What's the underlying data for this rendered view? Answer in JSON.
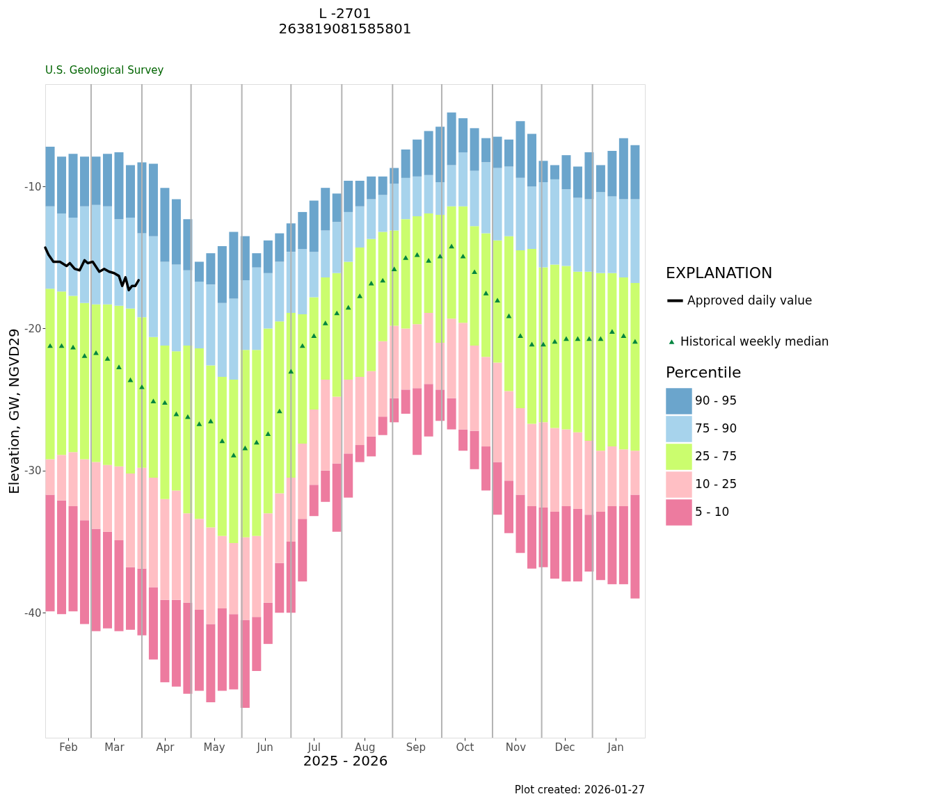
{
  "chart_data": {
    "type": "bar",
    "title": "L -2701",
    "subtitle": "263819081585801",
    "xlabel": "2025 - 2026",
    "ylabel": "Elevation, GW, NGVD29",
    "legend_title": [
      "EXPLANATION",
      "Percentile"
    ],
    "annotations": [
      "U.S. Geological Survey",
      "Plot created: 2026-01-27"
    ],
    "x": [
      "2025-02-04",
      "2025-02-11",
      "2025-02-18",
      "2025-02-25",
      "2025-03-04",
      "2025-03-11",
      "2025-03-18",
      "2025-03-25",
      "2025-04-01",
      "2025-04-08",
      "2025-04-15",
      "2025-04-22",
      "2025-04-29",
      "2025-05-06",
      "2025-05-13",
      "2025-05-20",
      "2025-05-27",
      "2025-06-03",
      "2025-06-10",
      "2025-06-17",
      "2025-06-24",
      "2025-07-01",
      "2025-07-08",
      "2025-07-15",
      "2025-07-22",
      "2025-07-29",
      "2025-08-05",
      "2025-08-12",
      "2025-08-19",
      "2025-08-26",
      "2025-09-02",
      "2025-09-09",
      "2025-09-16",
      "2025-09-23",
      "2025-09-30",
      "2025-10-07",
      "2025-10-14",
      "2025-10-21",
      "2025-10-28",
      "2025-11-04",
      "2025-11-11",
      "2025-11-18",
      "2025-11-25",
      "2025-12-02",
      "2025-12-09",
      "2025-12-16",
      "2025-12-23",
      "2025-12-30",
      "2026-01-06",
      "2026-01-13",
      "2026-01-20",
      "2026-01-27"
    ],
    "series": [
      {
        "name": "5 - 10",
        "color": "#ed7b9f",
        "base": [
          -39.9,
          -40.1,
          -39.9,
          -40.8,
          -41.3,
          -41.1,
          -41.3,
          -41.2,
          -41.6,
          -43.3,
          -44.9,
          -45.2,
          -45.7,
          -45.5,
          -46.3,
          -45.5,
          -45.4,
          -46.7,
          -44.1,
          -42.2,
          -40.0,
          -40.0,
          -37.8,
          -33.2,
          -32.2,
          -34.3,
          -31.9,
          -29.4,
          -29.0,
          -27.5,
          -26.6,
          -26.0,
          -28.9,
          -27.6,
          -26.5,
          -27.1,
          -28.6,
          -29.9,
          -31.4,
          -33.1,
          -34.4,
          -35.8,
          -36.9,
          -36.8,
          -37.6,
          -37.8,
          -37.8,
          -37.1,
          -37.7,
          -38.0,
          -38.0,
          -39.0
        ],
        "values": [
          8.2,
          8.0,
          7.4,
          7.3,
          7.2,
          6.8,
          6.4,
          4.4,
          4.7,
          5.1,
          5.8,
          6.1,
          6.4,
          5.7,
          5.5,
          5.8,
          5.3,
          6.2,
          3.8,
          2.9,
          3.5,
          5.0,
          4.4,
          2.2,
          2.2,
          4.8,
          3.1,
          1.2,
          1.4,
          1.3,
          1.7,
          1.7,
          4.7,
          3.7,
          2.2,
          2.2,
          1.5,
          2.7,
          3.1,
          3.7,
          3.7,
          4.1,
          4.4,
          4.2,
          4.7,
          5.3,
          5.1,
          4.0,
          4.8,
          5.5,
          5.5,
          7.3
        ]
      },
      {
        "name": "10 - 25",
        "color": "#ffbfc4",
        "base": [
          -31.7,
          -32.1,
          -32.5,
          -33.5,
          -34.1,
          -34.3,
          -34.9,
          -36.8,
          -36.9,
          -38.2,
          -39.1,
          -39.1,
          -39.3,
          -39.8,
          -40.8,
          -39.7,
          -40.1,
          -40.5,
          -40.3,
          -39.3,
          -36.5,
          -35.0,
          -33.4,
          -31.0,
          -30.0,
          -29.5,
          -28.8,
          -28.2,
          -27.6,
          -26.2,
          -24.9,
          -24.3,
          -24.2,
          -23.9,
          -24.3,
          -24.9,
          -27.1,
          -27.2,
          -28.3,
          -29.4,
          -30.7,
          -31.7,
          -32.5,
          -32.6,
          -32.9,
          -32.5,
          -32.7,
          -33.1,
          -32.9,
          -32.5,
          -32.5,
          -31.7
        ],
        "values": [
          2.5,
          3.2,
          3.8,
          4.3,
          4.7,
          4.7,
          5.2,
          6.6,
          7.1,
          7.7,
          7.1,
          7.7,
          6.3,
          6.4,
          6.8,
          5.1,
          5.0,
          5.8,
          5.7,
          6.3,
          4.9,
          4.5,
          5.3,
          5.3,
          6.4,
          4.7,
          5.2,
          4.8,
          4.6,
          5.3,
          5.1,
          4.3,
          4.5,
          5.0,
          3.3,
          5.6,
          7.5,
          6.0,
          6.3,
          7.0,
          6.3,
          6.1,
          5.8,
          6.0,
          5.9,
          5.4,
          5.4,
          5.2,
          4.3,
          4.2,
          4.0,
          3.1
        ]
      },
      {
        "name": "25 - 75",
        "color": "#cbfd6e",
        "base": [
          -29.2,
          -28.9,
          -28.7,
          -29.2,
          -29.4,
          -29.6,
          -29.7,
          -30.2,
          -29.8,
          -30.5,
          -32.0,
          -31.4,
          -33.0,
          -33.4,
          -34.0,
          -34.6,
          -35.1,
          -34.7,
          -34.6,
          -33.0,
          -31.6,
          -30.5,
          -28.1,
          -25.7,
          -23.6,
          -24.8,
          -23.6,
          -23.4,
          -23.0,
          -20.9,
          -19.8,
          -20.0,
          -19.7,
          -18.9,
          -21.0,
          -19.3,
          -19.6,
          -21.2,
          -22.0,
          -22.4,
          -24.4,
          -25.6,
          -26.7,
          -26.6,
          -27.0,
          -27.1,
          -27.3,
          -27.9,
          -28.6,
          -28.3,
          -28.5,
          -28.6
        ],
        "values": [
          12.0,
          11.5,
          11.0,
          11.0,
          11.1,
          11.3,
          11.3,
          11.6,
          10.6,
          9.9,
          10.8,
          9.8,
          11.8,
          12.0,
          11.4,
          11.2,
          11.5,
          13.2,
          13.1,
          13.0,
          12.1,
          11.6,
          9.1,
          7.9,
          7.2,
          8.7,
          8.3,
          9.1,
          9.3,
          7.7,
          6.7,
          7.7,
          7.6,
          7.0,
          9.0,
          7.9,
          8.2,
          8.4,
          8.7,
          8.6,
          10.9,
          11.1,
          12.3,
          10.9,
          11.5,
          11.5,
          11.3,
          11.9,
          12.5,
          12.2,
          12.1,
          11.8
        ]
      },
      {
        "name": "75 - 90",
        "color": "#a7d3ec",
        "base": [
          -17.2,
          -17.4,
          -17.7,
          -18.2,
          -18.3,
          -18.3,
          -18.4,
          -18.6,
          -19.2,
          -20.6,
          -21.2,
          -21.6,
          -21.2,
          -21.4,
          -22.6,
          -23.4,
          -23.6,
          -21.5,
          -21.5,
          -20.0,
          -19.5,
          -18.9,
          -19.0,
          -17.8,
          -16.4,
          -16.1,
          -15.3,
          -14.3,
          -13.7,
          -13.2,
          -13.1,
          -12.3,
          -12.1,
          -11.9,
          -12.0,
          -11.4,
          -11.4,
          -12.8,
          -13.3,
          -13.8,
          -13.5,
          -14.5,
          -14.4,
          -15.7,
          -15.5,
          -15.6,
          -16.0,
          -16.0,
          -16.1,
          -16.1,
          -16.4,
          -16.8
        ],
        "values": [
          5.8,
          5.5,
          5.5,
          6.8,
          7.0,
          6.9,
          6.1,
          6.4,
          5.9,
          7.1,
          5.9,
          6.1,
          5.3,
          4.7,
          5.7,
          5.2,
          5.7,
          4.9,
          5.8,
          3.9,
          4.2,
          4.3,
          4.6,
          3.2,
          3.3,
          3.6,
          3.5,
          2.9,
          2.8,
          2.6,
          3.3,
          2.9,
          2.8,
          2.7,
          2.3,
          2.9,
          3.8,
          3.9,
          5.0,
          5.1,
          4.9,
          5.1,
          4.4,
          6.0,
          6.0,
          5.4,
          5.2,
          5.1,
          5.7,
          5.4,
          5.5,
          5.9
        ]
      },
      {
        "name": "90 - 95",
        "color": "#6ba5cc",
        "base": [
          -11.4,
          -11.9,
          -12.2,
          -11.4,
          -11.3,
          -11.4,
          -12.3,
          -12.2,
          -13.3,
          -13.5,
          -15.3,
          -15.5,
          -15.9,
          -16.7,
          -16.9,
          -18.2,
          -17.9,
          -16.6,
          -15.7,
          -16.1,
          -15.3,
          -14.6,
          -14.4,
          -14.6,
          -13.1,
          -12.5,
          -11.8,
          -11.4,
          -10.9,
          -10.6,
          -9.8,
          -9.4,
          -9.3,
          -9.2,
          -9.7,
          -8.5,
          -7.6,
          -8.9,
          -8.3,
          -8.7,
          -8.6,
          -9.4,
          -10.0,
          -9.7,
          -9.5,
          -10.2,
          -10.8,
          -10.9,
          -10.4,
          -10.7,
          -10.9,
          -10.9
        ],
        "values": [
          4.2,
          4.0,
          4.5,
          3.5,
          3.4,
          3.7,
          4.7,
          3.7,
          5.0,
          5.1,
          5.2,
          4.6,
          3.6,
          1.4,
          2.2,
          4.0,
          4.7,
          3.1,
          1.0,
          2.3,
          2.0,
          2.0,
          2.6,
          3.6,
          3.0,
          2.0,
          2.2,
          1.8,
          1.6,
          1.3,
          1.1,
          2.0,
          2.6,
          3.1,
          3.9,
          3.7,
          2.4,
          3.0,
          1.7,
          2.2,
          1.9,
          4.0,
          3.7,
          1.5,
          1.0,
          2.4,
          2.2,
          3.3,
          1.9,
          3.2,
          4.3,
          3.8
        ]
      },
      {
        "name": "Approved daily value",
        "type": "line",
        "color": "#000000",
        "x": [
          "2025-02-01",
          "2025-02-03",
          "2025-02-06",
          "2025-02-10",
          "2025-02-14",
          "2025-02-16",
          "2025-02-19",
          "2025-02-22",
          "2025-02-25",
          "2025-02-27",
          "2025-03-02",
          "2025-03-06",
          "2025-03-09",
          "2025-03-12",
          "2025-03-15",
          "2025-03-18",
          "2025-03-20",
          "2025-03-22",
          "2025-03-24",
          "2025-03-26",
          "2025-03-28",
          "2025-03-30"
        ],
        "values": [
          -14.3,
          -14.8,
          -15.3,
          -15.3,
          -15.6,
          -15.4,
          -15.8,
          -15.9,
          -15.2,
          -15.4,
          -15.3,
          -16.0,
          -15.8,
          -16.0,
          -16.1,
          -16.3,
          -17.0,
          -16.4,
          -17.3,
          -17.0,
          -17.0,
          -16.6
        ]
      },
      {
        "name": "Historical weekly median",
        "type": "scatter",
        "marker": "triangle",
        "color": "#00853f",
        "values": [
          -21.2,
          -21.2,
          -21.3,
          -21.9,
          -21.7,
          -22.1,
          -22.7,
          -23.6,
          -24.1,
          -25.1,
          -25.2,
          -26.0,
          -26.2,
          -26.7,
          -26.5,
          -27.9,
          -28.9,
          -28.4,
          -28.0,
          -27.4,
          -25.8,
          -23.0,
          -21.2,
          -20.5,
          -19.6,
          -18.9,
          -18.5,
          -17.7,
          -16.8,
          -16.6,
          -15.8,
          -15.0,
          -14.8,
          -15.2,
          -14.9,
          -14.2,
          -14.9,
          -16.0,
          -17.5,
          -18.0,
          -19.1,
          -20.5,
          -21.1,
          -21.1,
          -20.9,
          -20.7,
          -20.7,
          -20.7,
          -20.7,
          -20.2,
          -20.5,
          -20.9
        ]
      }
    ],
    "xlim": [
      "2025-02-01",
      "2026-02-02"
    ],
    "xticks": [
      {
        "value": "2025-02-15",
        "label": "Feb"
      },
      {
        "value": "2025-03-15",
        "label": "Mar"
      },
      {
        "value": "2025-04-15",
        "label": "Apr"
      },
      {
        "value": "2025-05-15",
        "label": "May"
      },
      {
        "value": "2025-06-15",
        "label": "Jun"
      },
      {
        "value": "2025-07-15",
        "label": "Jul"
      },
      {
        "value": "2025-08-15",
        "label": "Aug"
      },
      {
        "value": "2025-09-15",
        "label": "Sep"
      },
      {
        "value": "2025-10-15",
        "label": "Oct"
      },
      {
        "value": "2025-11-15",
        "label": "Nov"
      },
      {
        "value": "2025-12-15",
        "label": "Dec"
      },
      {
        "value": "2026-01-15",
        "label": "Jan"
      }
    ],
    "ylim": [
      -48.8,
      -2.8
    ],
    "yticks": [
      -10,
      -20,
      -30,
      -40
    ],
    "ref_lines": [
      {
        "axis": "x",
        "value": "2025-03-01",
        "color": "#b3b3b3"
      },
      {
        "axis": "x",
        "value": "2025-04-01",
        "color": "#b3b3b3"
      },
      {
        "axis": "x",
        "value": "2025-05-01",
        "color": "#b3b3b3"
      },
      {
        "axis": "x",
        "value": "2025-06-01",
        "color": "#b3b3b3"
      },
      {
        "axis": "x",
        "value": "2025-07-01",
        "color": "#b3b3b3"
      },
      {
        "axis": "x",
        "value": "2025-08-01",
        "color": "#b3b3b3"
      },
      {
        "axis": "x",
        "value": "2025-09-01",
        "color": "#b3b3b3"
      },
      {
        "axis": "x",
        "value": "2025-10-01",
        "color": "#b3b3b3"
      },
      {
        "axis": "x",
        "value": "2025-11-01",
        "color": "#b3b3b3"
      },
      {
        "axis": "x",
        "value": "2025-12-01",
        "color": "#b3b3b3"
      },
      {
        "axis": "x",
        "value": "2026-01-01",
        "color": "#b3b3b3"
      }
    ],
    "grid": false,
    "legend": "right"
  }
}
